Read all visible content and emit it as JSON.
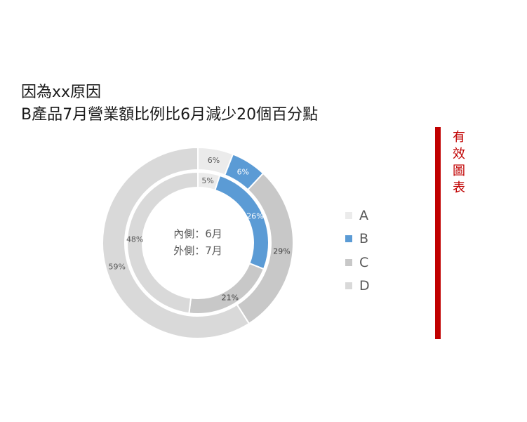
{
  "title_lines": [
    "因為xx原因",
    "B產品7月營業額比例比6月減少20個百分點"
  ],
  "side_label_chars": [
    "有",
    "效",
    "圖",
    "表"
  ],
  "colors": {
    "accent": "#c00000",
    "A": "#ebebeb",
    "B": "#5b9bd5",
    "C": "#c8c8c8",
    "D": "#d9d9d9"
  },
  "chart_data": {
    "type": "doughnut",
    "categories": [
      "A",
      "B",
      "C",
      "D"
    ],
    "series": [
      {
        "name": "6月",
        "ring": "inner",
        "values": [
          5,
          26,
          21,
          48
        ],
        "labels": [
          "5%",
          "26%",
          "21%",
          "48%"
        ]
      },
      {
        "name": "7月",
        "ring": "outer",
        "values": [
          6,
          6,
          29,
          59
        ],
        "labels": [
          "6%",
          "6%",
          "29%",
          "59%"
        ]
      }
    ],
    "center_text": [
      "內側：6月",
      "外側：7月"
    ],
    "legend": [
      "A",
      "B",
      "C",
      "D"
    ],
    "legend_position": "right"
  }
}
